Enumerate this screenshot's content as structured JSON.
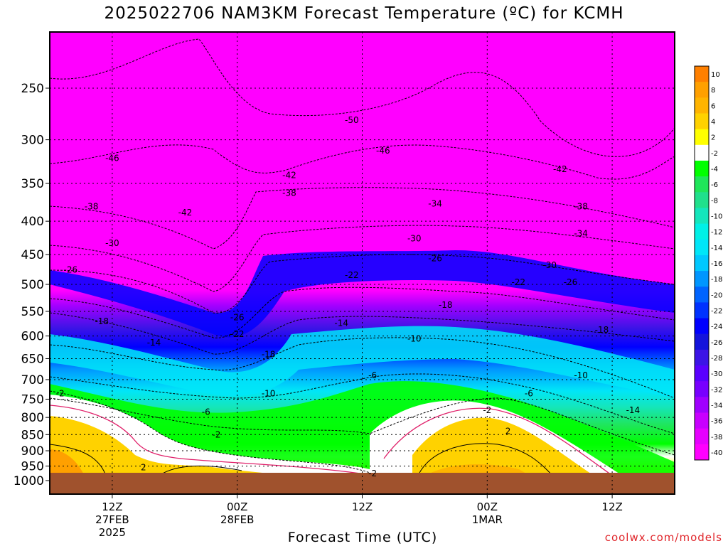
{
  "title": "2025022706 NAM3KM Forecast Temperature (ºC) for KCMH",
  "x_axis_title": "Forecast Time (UTC)",
  "credit": "coolwx.com/models",
  "chart_data": {
    "type": "heatmap",
    "title": "2025022706 NAM3KM Forecast Temperature (ºC) for KCMH",
    "xlabel": "Forecast Time (UTC)",
    "ylabel": "",
    "ylim": [
      1000,
      200
    ],
    "yscale": "log",
    "y_ticks": [
      250,
      300,
      350,
      400,
      450,
      500,
      550,
      600,
      650,
      700,
      750,
      800,
      850,
      900,
      950,
      1000
    ],
    "x_ticks": [
      {
        "line1": "12Z",
        "line2": "27FEB",
        "line3": "2025",
        "hour": 12
      },
      {
        "line1": "00Z",
        "line2": "28FEB",
        "line3": "",
        "hour": 24
      },
      {
        "line1": "12Z",
        "line2": "",
        "line3": "",
        "hour": 36
      },
      {
        "line1": "00Z",
        "line2": "1MAR",
        "line3": "",
        "hour": 48
      },
      {
        "line1": "12Z",
        "line2": "",
        "line3": "",
        "hour": 60
      }
    ],
    "xlim": [
      6,
      66
    ],
    "grid": true,
    "colorbar": {
      "placement": "right",
      "labels": [
        "10",
        "8",
        "6",
        "4",
        "2",
        "-2",
        "-4",
        "-6",
        "-8",
        "-10",
        "-12",
        "-14",
        "-16",
        "-18",
        "-20",
        "-22",
        "-24",
        "-26",
        "-28",
        "-30",
        "-32",
        "-34",
        "-36",
        "-38",
        "-40"
      ],
      "colors": [
        "#ff8000",
        "#ffa000",
        "#ffb400",
        "#ffd200",
        "#ffff00",
        "#ffffff",
        "#00ff00",
        "#1fe65a",
        "#20e08c",
        "#14e6bc",
        "#00f0e6",
        "#00e6f8",
        "#00c8ff",
        "#0096ff",
        "#0064ff",
        "#0032ff",
        "#0000ff",
        "#1414dc",
        "#3c14e6",
        "#5a00ff",
        "#7800ff",
        "#a000ff",
        "#c800ff",
        "#e600ff",
        "#ff00ff"
      ]
    },
    "ground_color": "#a0522d",
    "isotherms": [
      {
        "label": "-50",
        "value": -50,
        "hour": 35,
        "pressure": 280
      },
      {
        "label": "-46",
        "value": -46,
        "hour": 12,
        "pressure": 320
      },
      {
        "label": "-46",
        "value": -46,
        "hour": 38,
        "pressure": 312
      },
      {
        "label": "-42",
        "value": -42,
        "hour": 19,
        "pressure": 388
      },
      {
        "label": "-42",
        "value": -42,
        "hour": 29,
        "pressure": 340
      },
      {
        "label": "-42",
        "value": -42,
        "hour": 55,
        "pressure": 333
      },
      {
        "label": "-38",
        "value": -38,
        "hour": 10,
        "pressure": 380
      },
      {
        "label": "-38",
        "value": -38,
        "hour": 29,
        "pressure": 362
      },
      {
        "label": "-38",
        "value": -38,
        "hour": 57,
        "pressure": 380
      },
      {
        "label": "-34",
        "value": -34,
        "hour": 43,
        "pressure": 376
      },
      {
        "label": "-34",
        "value": -34,
        "hour": 57,
        "pressure": 418
      },
      {
        "label": "-30",
        "value": -30,
        "hour": 12,
        "pressure": 432
      },
      {
        "label": "-30",
        "value": -30,
        "hour": 41,
        "pressure": 425
      },
      {
        "label": "-30",
        "value": -30,
        "hour": 54,
        "pressure": 467
      },
      {
        "label": "-26",
        "value": -26,
        "hour": 8,
        "pressure": 475
      },
      {
        "label": "-26",
        "value": -26,
        "hour": 43,
        "pressure": 456
      },
      {
        "label": "-26",
        "value": -26,
        "hour": 24,
        "pressure": 562
      },
      {
        "label": "-26",
        "value": -26,
        "hour": 56,
        "pressure": 496
      },
      {
        "label": "-22",
        "value": -22,
        "hour": 35,
        "pressure": 484
      },
      {
        "label": "-22",
        "value": -22,
        "hour": 24,
        "pressure": 596
      },
      {
        "label": "-22",
        "value": -22,
        "hour": 51,
        "pressure": 496
      },
      {
        "label": "-18",
        "value": -18,
        "hour": 11,
        "pressure": 570
      },
      {
        "label": "-18",
        "value": -18,
        "hour": 27,
        "pressure": 640
      },
      {
        "label": "-18",
        "value": -18,
        "hour": 44,
        "pressure": 538
      },
      {
        "label": "-18",
        "value": -18,
        "hour": 59,
        "pressure": 587
      },
      {
        "label": "-14",
        "value": -14,
        "hour": 16,
        "pressure": 614
      },
      {
        "label": "-14",
        "value": -14,
        "hour": 34,
        "pressure": 573
      },
      {
        "label": "-14",
        "value": -14,
        "hour": 62,
        "pressure": 780
      },
      {
        "label": "-10",
        "value": -10,
        "hour": 27,
        "pressure": 735
      },
      {
        "label": "-10",
        "value": -10,
        "hour": 41,
        "pressure": 606
      },
      {
        "label": "-10",
        "value": -10,
        "hour": 57,
        "pressure": 690
      },
      {
        "label": "-6",
        "value": -6,
        "hour": 21,
        "pressure": 785
      },
      {
        "label": "-6",
        "value": -6,
        "hour": 37,
        "pressure": 690
      },
      {
        "label": "-6",
        "value": -6,
        "hour": 52,
        "pressure": 735
      },
      {
        "label": "-2",
        "value": -2,
        "hour": 7,
        "pressure": 735
      },
      {
        "label": "-2",
        "value": -2,
        "hour": 22,
        "pressure": 850
      },
      {
        "label": "-2",
        "value": -2,
        "hour": 37,
        "pressure": 975
      },
      {
        "label": "-2",
        "value": -2,
        "hour": 48,
        "pressure": 780
      },
      {
        "label": "2",
        "value": 2,
        "hour": 15,
        "pressure": 955
      },
      {
        "label": "2",
        "value": 2,
        "hour": 50,
        "pressure": 840
      }
    ]
  }
}
